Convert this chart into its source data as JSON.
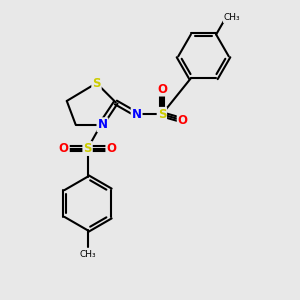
{
  "bg_color": "#e8e8e8",
  "bond_color": "#000000",
  "S_color": "#cccc00",
  "N_color": "#0000ff",
  "O_color": "#ff0000",
  "line_width": 1.5,
  "font_size_atom": 8.5,
  "fig_bg": "#e8e8e8",
  "xlim": [
    0,
    10
  ],
  "ylim": [
    0,
    10
  ]
}
